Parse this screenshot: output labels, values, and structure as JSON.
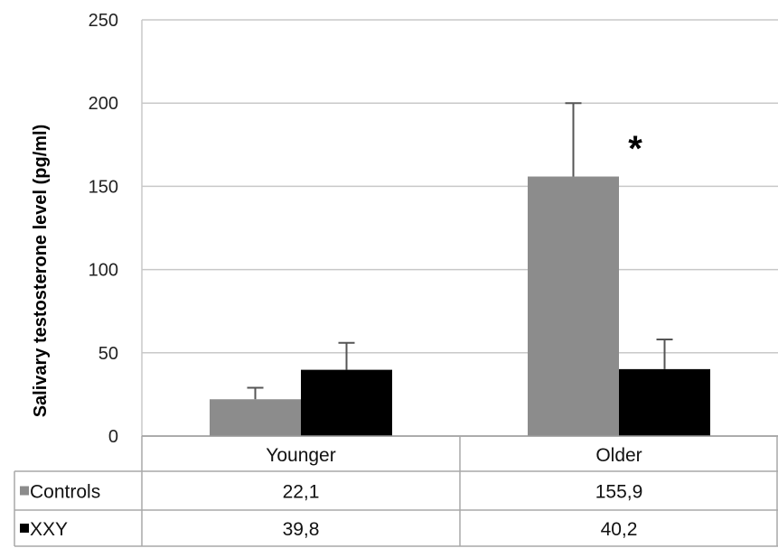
{
  "chart_data": {
    "type": "bar",
    "ylabel": "Salivary testosterone level  (pg/ml)",
    "ylim": [
      0,
      250
    ],
    "yticks": [
      "0",
      "50",
      "100",
      "150",
      "200",
      "250"
    ],
    "grid": true,
    "categories": [
      "Younger",
      "Older"
    ],
    "series": [
      {
        "name": "Controls",
        "color": "#8c8c8c",
        "values": [
          22.1,
          155.9
        ],
        "error_upper": [
          29,
          200
        ],
        "labels": [
          "22,1",
          "155,9"
        ]
      },
      {
        "name": "XXY",
        "color": "#000000",
        "values": [
          39.8,
          40.2
        ],
        "error_upper": [
          56,
          58
        ],
        "labels": [
          "39,8",
          "40,2"
        ]
      }
    ],
    "annotation": "*"
  }
}
